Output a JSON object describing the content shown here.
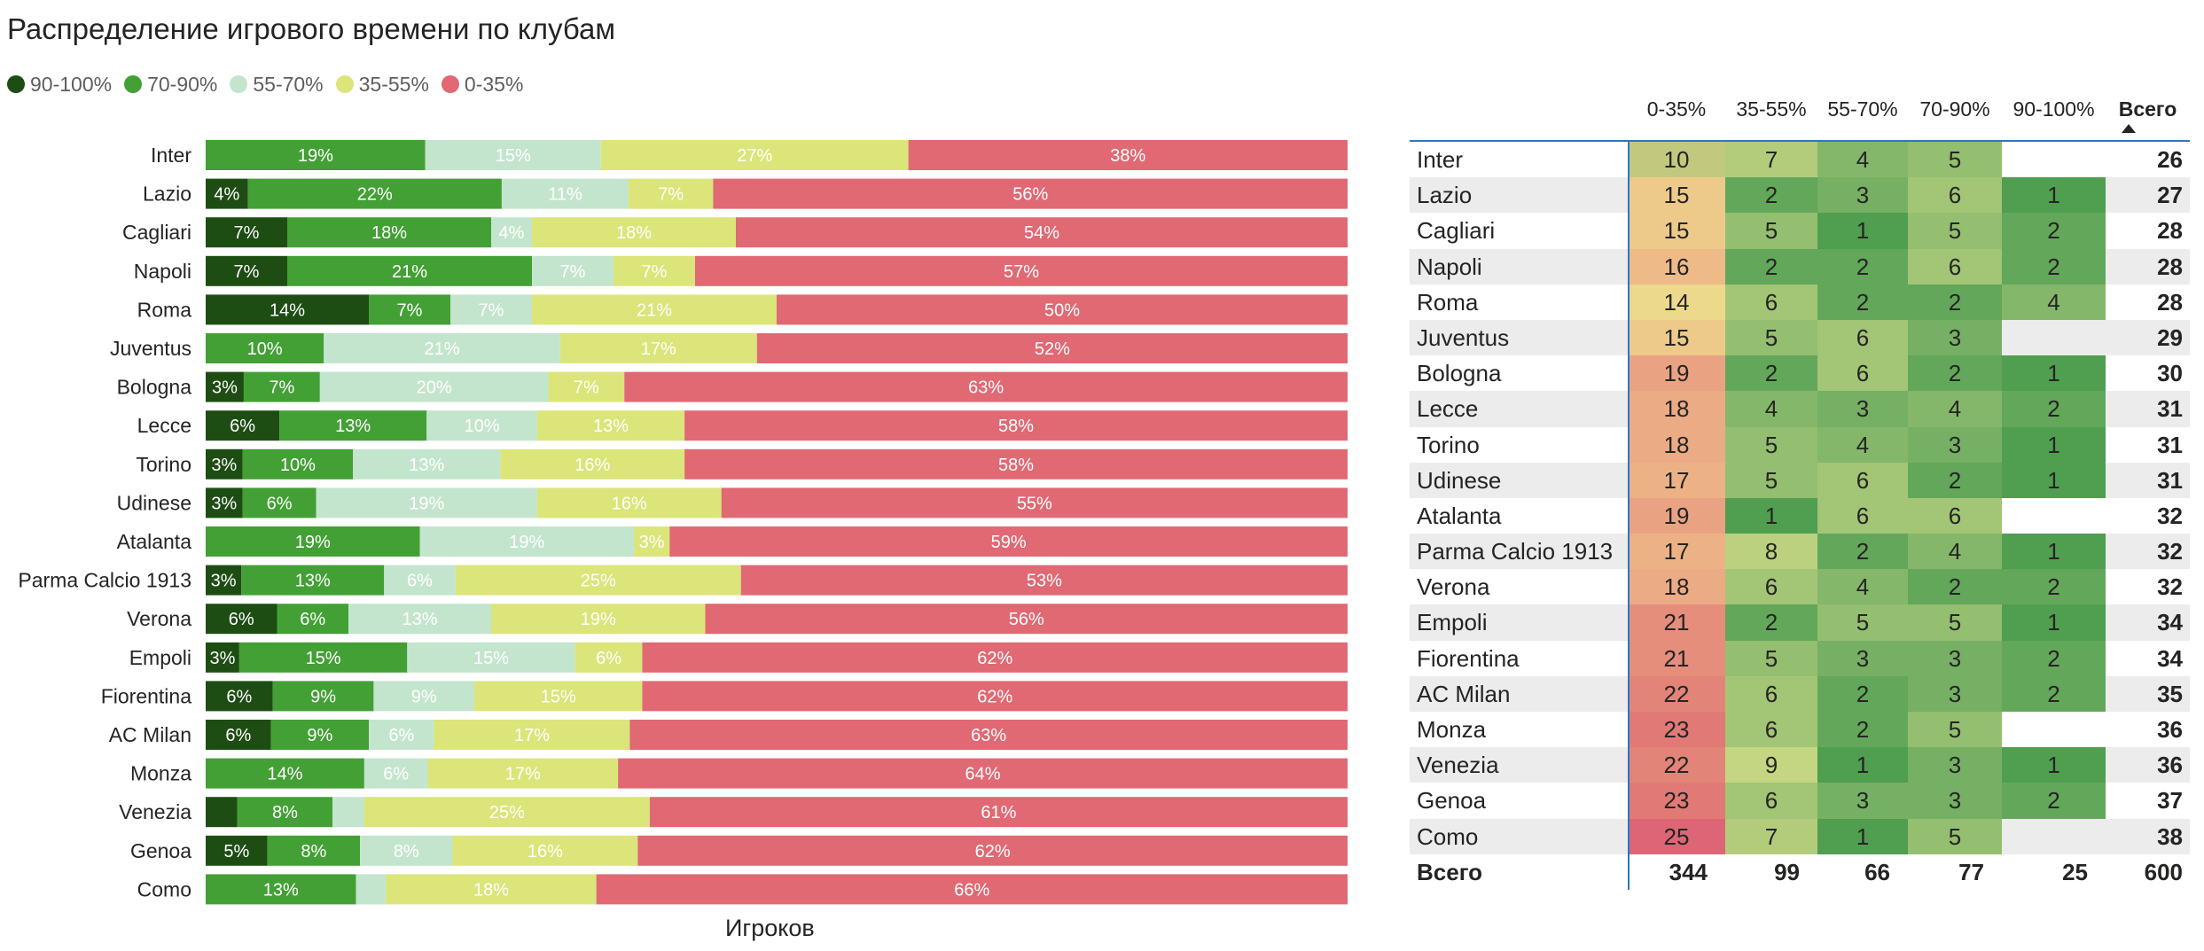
{
  "title": "Распределение игрового времени по клубам",
  "legend": [
    {
      "label": "90-100%",
      "color": "#1e4d14"
    },
    {
      "label": "70-90%",
      "color": "#43a035"
    },
    {
      "label": "55-70%",
      "color": "#c4e5cd"
    },
    {
      "label": "35-55%",
      "color": "#dbe57a"
    },
    {
      "label": "0-35%",
      "color": "#e06973"
    }
  ],
  "chart_data": {
    "type": "bar",
    "orientation": "horizontal-stacked-100",
    "xlabel": "Игроков",
    "categories": [
      "Inter",
      "Lazio",
      "Cagliari",
      "Napoli",
      "Roma",
      "Juventus",
      "Bologna",
      "Lecce",
      "Torino",
      "Udinese",
      "Atalanta",
      "Parma Calcio 1913",
      "Verona",
      "Empoli",
      "Fiorentina",
      "AC Milan",
      "Monza",
      "Venezia",
      "Genoa",
      "Como"
    ],
    "series": [
      {
        "name": "90-100%",
        "color": "#1e4d14",
        "values": [
          0,
          1,
          2,
          2,
          4,
          0,
          1,
          2,
          1,
          1,
          0,
          1,
          2,
          1,
          2,
          2,
          0,
          1,
          2,
          0
        ],
        "labels": [
          "",
          "4%",
          "7%",
          "7%",
          "14%",
          "",
          "3%",
          "6%",
          "3%",
          "3%",
          "",
          "3%",
          "6%",
          "3%",
          "6%",
          "6%",
          "",
          "",
          "5%",
          ""
        ]
      },
      {
        "name": "70-90%",
        "color": "#43a035",
        "values": [
          5,
          6,
          5,
          6,
          2,
          3,
          2,
          4,
          3,
          2,
          6,
          4,
          2,
          5,
          3,
          3,
          5,
          3,
          3,
          5
        ],
        "labels": [
          "19%",
          "22%",
          "18%",
          "21%",
          "7%",
          "10%",
          "7%",
          "13%",
          "10%",
          "6%",
          "19%",
          "13%",
          "6%",
          "15%",
          "9%",
          "9%",
          "14%",
          "8%",
          "8%",
          "13%"
        ]
      },
      {
        "name": "55-70%",
        "color": "#c4e5cd",
        "values": [
          4,
          3,
          1,
          2,
          2,
          6,
          6,
          3,
          4,
          6,
          6,
          2,
          4,
          5,
          3,
          2,
          2,
          1,
          3,
          1
        ],
        "labels": [
          "15%",
          "11%",
          "4%",
          "7%",
          "7%",
          "21%",
          "20%",
          "10%",
          "13%",
          "19%",
          "19%",
          "6%",
          "13%",
          "15%",
          "9%",
          "6%",
          "6%",
          "",
          "8%",
          ""
        ]
      },
      {
        "name": "35-55%",
        "color": "#dbe57a",
        "values": [
          7,
          2,
          5,
          2,
          6,
          5,
          2,
          4,
          5,
          5,
          1,
          8,
          6,
          2,
          5,
          6,
          6,
          9,
          6,
          7
        ],
        "labels": [
          "27%",
          "7%",
          "18%",
          "7%",
          "21%",
          "17%",
          "7%",
          "13%",
          "16%",
          "16%",
          "3%",
          "25%",
          "19%",
          "6%",
          "15%",
          "17%",
          "17%",
          "25%",
          "16%",
          "18%"
        ]
      },
      {
        "name": "0-35%",
        "color": "#e06973",
        "values": [
          10,
          15,
          15,
          16,
          14,
          15,
          19,
          18,
          18,
          17,
          19,
          17,
          18,
          21,
          21,
          22,
          23,
          22,
          23,
          25
        ],
        "labels": [
          "38%",
          "56%",
          "54%",
          "57%",
          "50%",
          "52%",
          "63%",
          "58%",
          "58%",
          "55%",
          "59%",
          "53%",
          "56%",
          "62%",
          "62%",
          "63%",
          "64%",
          "61%",
          "62%",
          "66%"
        ]
      }
    ]
  },
  "matrix": {
    "columns": [
      "0-35%",
      "35-55%",
      "55-70%",
      "70-90%",
      "90-100%",
      "Всего"
    ],
    "rows": [
      {
        "club": "Inter",
        "v": [
          "10",
          "7",
          "4",
          "5",
          ""
        ],
        "total": "26"
      },
      {
        "club": "Lazio",
        "v": [
          "15",
          "2",
          "3",
          "6",
          "1"
        ],
        "total": "27"
      },
      {
        "club": "Cagliari",
        "v": [
          "15",
          "5",
          "1",
          "5",
          "2"
        ],
        "total": "28"
      },
      {
        "club": "Napoli",
        "v": [
          "16",
          "2",
          "2",
          "6",
          "2"
        ],
        "total": "28"
      },
      {
        "club": "Roma",
        "v": [
          "14",
          "6",
          "2",
          "2",
          "4"
        ],
        "total": "28"
      },
      {
        "club": "Juventus",
        "v": [
          "15",
          "5",
          "6",
          "3",
          ""
        ],
        "total": "29"
      },
      {
        "club": "Bologna",
        "v": [
          "19",
          "2",
          "6",
          "2",
          "1"
        ],
        "total": "30"
      },
      {
        "club": "Lecce",
        "v": [
          "18",
          "4",
          "3",
          "4",
          "2"
        ],
        "total": "31"
      },
      {
        "club": "Torino",
        "v": [
          "18",
          "5",
          "4",
          "3",
          "1"
        ],
        "total": "31"
      },
      {
        "club": "Udinese",
        "v": [
          "17",
          "5",
          "6",
          "2",
          "1"
        ],
        "total": "31"
      },
      {
        "club": "Atalanta",
        "v": [
          "19",
          "1",
          "6",
          "6",
          ""
        ],
        "total": "32"
      },
      {
        "club": "Parma Calcio 1913",
        "v": [
          "17",
          "8",
          "2",
          "4",
          "1"
        ],
        "total": "32"
      },
      {
        "club": "Verona",
        "v": [
          "18",
          "6",
          "4",
          "2",
          "2"
        ],
        "total": "32"
      },
      {
        "club": "Empoli",
        "v": [
          "21",
          "2",
          "5",
          "5",
          "1"
        ],
        "total": "34"
      },
      {
        "club": "Fiorentina",
        "v": [
          "21",
          "5",
          "3",
          "3",
          "2"
        ],
        "total": "34"
      },
      {
        "club": "AC Milan",
        "v": [
          "22",
          "6",
          "2",
          "3",
          "2"
        ],
        "total": "35"
      },
      {
        "club": "Monza",
        "v": [
          "23",
          "6",
          "2",
          "5",
          ""
        ],
        "total": "36"
      },
      {
        "club": "Venezia",
        "v": [
          "22",
          "9",
          "1",
          "3",
          "1"
        ],
        "total": "36"
      },
      {
        "club": "Genoa",
        "v": [
          "23",
          "6",
          "3",
          "3",
          "2"
        ],
        "total": "37"
      },
      {
        "club": "Como",
        "v": [
          "25",
          "7",
          "1",
          "5",
          ""
        ],
        "total": "38"
      }
    ],
    "total_row": {
      "club": "Всего",
      "v": [
        "344",
        "99",
        "66",
        "77",
        "25"
      ],
      "total": "600"
    }
  }
}
